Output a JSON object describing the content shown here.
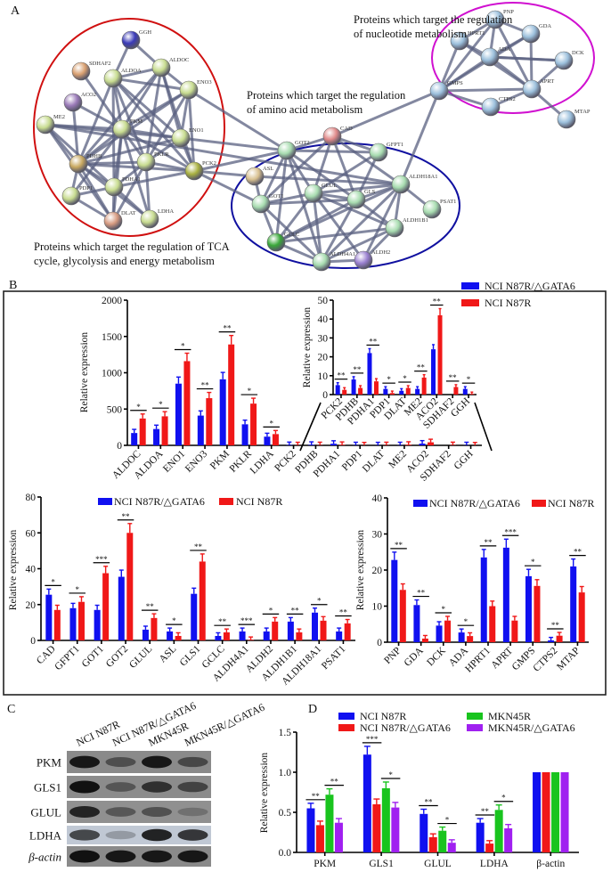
{
  "colors": {
    "blue": "#1010f0",
    "red": "#f01818",
    "green": "#19c41e",
    "purple": "#a020f0",
    "edge": "#5a6080",
    "tca_ring": "#d01010",
    "aa_ring": "#1010a0",
    "nuc_ring": "#d010d0"
  },
  "panel_a": {
    "letter": "A",
    "captions": {
      "nucleotide": [
        "Proteins which target the regulation",
        "of nucleotide metabolism"
      ],
      "amino": [
        "Proteins which target the regulation",
        "of amino acid metabolism"
      ],
      "tca": [
        "Proteins which target the regulation of TCA",
        "cycle, glycolysis and energy metabolism"
      ]
    },
    "groups": {
      "tca": [
        "GGH",
        "SDHAF2",
        "ALDOA",
        "ALDOC",
        "ENO3",
        "ACO2",
        "ME2",
        "PKM",
        "ENO1",
        "PKLR",
        "PCK2",
        "PDHB",
        "PDP1",
        "PDHA1",
        "DLAT",
        "LDHA"
      ],
      "amino": [
        "GOT2",
        "CAD",
        "GFPT1",
        "ASL",
        "ALDH18A1",
        "GLUL",
        "GLS",
        "GOT1",
        "PSAT1",
        "ALDH1B1",
        "GCLC",
        "ALDH4A1",
        "ALDH2"
      ],
      "nucleotide": [
        "PNP",
        "GDA",
        "HPRT1",
        "ADA",
        "DCK",
        "GMPS",
        "APRT",
        "CTPS2",
        "MTAP"
      ]
    },
    "edges": [
      [
        "GGH",
        "ALDOA"
      ],
      [
        "GGH",
        "ALDOC"
      ],
      [
        "SDHAF2",
        "PKM"
      ],
      [
        "ALDOA",
        "ALDOC"
      ],
      [
        "ALDOA",
        "ENO3"
      ],
      [
        "ALDOA",
        "PKM"
      ],
      [
        "ALDOA",
        "ENO1"
      ],
      [
        "ALDOA",
        "PKLR"
      ],
      [
        "ALDOA",
        "PDHB"
      ],
      [
        "ALDOA",
        "PDHA1"
      ],
      [
        "ALDOA",
        "PCK2"
      ],
      [
        "ALDOC",
        "ENO3"
      ],
      [
        "ALDOC",
        "PKM"
      ],
      [
        "ALDOC",
        "ENO1"
      ],
      [
        "ALDOC",
        "PKLR"
      ],
      [
        "ALDOC",
        "PDHB"
      ],
      [
        "ALDOC",
        "PCK2"
      ],
      [
        "ENO3",
        "PKM"
      ],
      [
        "ENO3",
        "ENO1"
      ],
      [
        "ENO3",
        "PKLR"
      ],
      [
        "ENO3",
        "PDHB"
      ],
      [
        "ENO3",
        "PCK2"
      ],
      [
        "ENO3",
        "GOT2"
      ],
      [
        "ACO2",
        "PDHB"
      ],
      [
        "ACO2",
        "PKM"
      ],
      [
        "ME2",
        "PKM"
      ],
      [
        "ME2",
        "PDHB"
      ],
      [
        "ME2",
        "ENO1"
      ],
      [
        "ME2",
        "PDHA1"
      ],
      [
        "ME2",
        "DLAT"
      ],
      [
        "PKM",
        "ENO1"
      ],
      [
        "PKM",
        "PKLR"
      ],
      [
        "PKM",
        "PCK2"
      ],
      [
        "PKM",
        "PDHB"
      ],
      [
        "PKM",
        "PDHA1"
      ],
      [
        "PKM",
        "LDHA"
      ],
      [
        "PKM",
        "DLAT"
      ],
      [
        "PKM",
        "PDP1"
      ],
      [
        "ENO1",
        "PKLR"
      ],
      [
        "ENO1",
        "PCK2"
      ],
      [
        "ENO1",
        "PDHB"
      ],
      [
        "ENO1",
        "GOT2"
      ],
      [
        "PKLR",
        "PCK2"
      ],
      [
        "PKLR",
        "PDHB"
      ],
      [
        "PKLR",
        "PDHA1"
      ],
      [
        "PKLR",
        "LDHA"
      ],
      [
        "PCK2",
        "PDHB"
      ],
      [
        "PCK2",
        "PDHA1"
      ],
      [
        "PCK2",
        "GOT2"
      ],
      [
        "PCK2",
        "GOT1"
      ],
      [
        "PCK2",
        "ASL"
      ],
      [
        "PDHB",
        "PDP1"
      ],
      [
        "PDHB",
        "PDHA1"
      ],
      [
        "PDHB",
        "DLAT"
      ],
      [
        "PDHB",
        "LDHA"
      ],
      [
        "PDP1",
        "PDHA1"
      ],
      [
        "PDP1",
        "DLAT"
      ],
      [
        "PDHA1",
        "DLAT"
      ],
      [
        "PDHA1",
        "LDHA"
      ],
      [
        "DLAT",
        "PKLR"
      ],
      [
        "ME2",
        "ALDH18A1"
      ],
      [
        "GOT2",
        "CAD"
      ],
      [
        "GOT2",
        "GFPT1"
      ],
      [
        "GOT2",
        "GLUL"
      ],
      [
        "GOT2",
        "GLS"
      ],
      [
        "GOT2",
        "GOT1"
      ],
      [
        "GOT2",
        "GCLC"
      ],
      [
        "GOT2",
        "ALDH4A1"
      ],
      [
        "CAD",
        "GFPT1"
      ],
      [
        "CAD",
        "GLUL"
      ],
      [
        "CAD",
        "GLS"
      ],
      [
        "CAD",
        "GOT1"
      ],
      [
        "CAD",
        "ALDH18A1"
      ],
      [
        "CAD",
        "GMPS"
      ],
      [
        "GFPT1",
        "GLUL"
      ],
      [
        "GFPT1",
        "GLS"
      ],
      [
        "ASL",
        "ALDH18A1"
      ],
      [
        "ASL",
        "GOT1"
      ],
      [
        "ALDH18A1",
        "GLUL"
      ],
      [
        "ALDH18A1",
        "GLS"
      ],
      [
        "ALDH18A1",
        "PSAT1"
      ],
      [
        "ALDH18A1",
        "ALDH1B1"
      ],
      [
        "ALDH18A1",
        "ALDH4A1"
      ],
      [
        "ALDH18A1",
        "ALDH2"
      ],
      [
        "ALDH18A1",
        "GCLC"
      ],
      [
        "ALDH18A1",
        "GMPS"
      ],
      [
        "GLUL",
        "GLS"
      ],
      [
        "GLUL",
        "GOT1"
      ],
      [
        "GLUL",
        "GCLC"
      ],
      [
        "GLUL",
        "ALDH4A1"
      ],
      [
        "GLUL",
        "ALDH2"
      ],
      [
        "GLUL",
        "ALDH1B1"
      ],
      [
        "GLS",
        "GOT1"
      ],
      [
        "GLS",
        "GCLC"
      ],
      [
        "GLS",
        "ALDH4A1"
      ],
      [
        "GLS",
        "ALDH1B1"
      ],
      [
        "GOT1",
        "GCLC"
      ],
      [
        "GOT1",
        "ALDH4A1"
      ],
      [
        "GCLC",
        "ALDH4A1"
      ],
      [
        "GCLC",
        "ALDH1B1"
      ],
      [
        "ALDH4A1",
        "ALDH2"
      ],
      [
        "ALDH4A1",
        "ALDH1B1"
      ],
      [
        "ALDH2",
        "ALDH1B1"
      ],
      [
        "PNP",
        "GDA"
      ],
      [
        "PNP",
        "HPRT1"
      ],
      [
        "PNP",
        "ADA"
      ],
      [
        "PNP",
        "GMPS"
      ],
      [
        "PNP",
        "APRT"
      ],
      [
        "GDA",
        "ADA"
      ],
      [
        "GDA",
        "APRT"
      ],
      [
        "GDA",
        "GMPS"
      ],
      [
        "HPRT1",
        "ADA"
      ],
      [
        "HPRT1",
        "GMPS"
      ],
      [
        "HPRT1",
        "APRT"
      ],
      [
        "ADA",
        "GMPS"
      ],
      [
        "ADA",
        "APRT"
      ],
      [
        "DCK",
        "APRT"
      ],
      [
        "DCK",
        "ADA"
      ],
      [
        "GMPS",
        "APRT"
      ],
      [
        "GMPS",
        "CTPS2"
      ],
      [
        "APRT",
        "CTPS2"
      ],
      [
        "APRT",
        "MTAP"
      ],
      [
        "ADA",
        "DCK"
      ]
    ]
  },
  "panel_b": {
    "letter": "B",
    "legend": {
      "series1": "NCI N87R/△GATA6",
      "series2": "NCI N87R"
    }
  },
  "panel_c": {
    "letter": "C",
    "lanes": [
      "NCI N87R",
      "NCI N87R/△GATA6",
      "MKN45R",
      "MKN45R/△GATA6"
    ],
    "rows": [
      "PKM",
      "GLS1",
      "GLUL",
      "LDHA",
      "β-actin"
    ]
  },
  "panel_d": {
    "letter": "D"
  },
  "chart_data": [
    {
      "id": "b-main",
      "type": "bar",
      "ylabel": "Relative expression",
      "ylim": [
        0,
        2000
      ],
      "yticks": [
        0,
        500,
        1000,
        1500,
        2000
      ],
      "categories": [
        "ALDOC",
        "ALDOA",
        "ENO1",
        "ENO3",
        "PKM",
        "PKLR",
        "LDHA",
        "PCK2",
        "PDHB",
        "PDHA1",
        "PDP1",
        "DLAT",
        "ME2",
        "ACO2",
        "SDHAF2",
        "GGH"
      ],
      "series": [
        {
          "name": "NCI N87R/△GATA6",
          "color": "#1010f0",
          "values": [
            170,
            225,
            850,
            410,
            910,
            290,
            120,
            5,
            8,
            22,
            3,
            2,
            3,
            24,
            0,
            3
          ]
        },
        {
          "name": "NCI N87R",
          "color": "#f01818",
          "values": [
            370,
            400,
            1160,
            650,
            1390,
            575,
            155,
            2.5,
            3.5,
            7,
            0.8,
            3.5,
            9,
            42,
            4,
            0.3
          ]
        }
      ],
      "significance": [
        "*",
        "*",
        "*",
        "**",
        "**",
        "*",
        "*",
        "",
        "",
        "",
        "",
        "",
        "",
        "",
        "",
        ""
      ]
    },
    {
      "id": "b-inset",
      "type": "bar",
      "ylabel": "Relative expression",
      "ylim": [
        0,
        50
      ],
      "yticks": [
        0,
        10,
        20,
        30,
        40,
        50
      ],
      "legend": "top-right",
      "categories": [
        "PCK2",
        "PDHB",
        "PDHA1",
        "PDP1",
        "DLAT",
        "ME2",
        "ACO2",
        "SDHAF2",
        "GGH"
      ],
      "series": [
        {
          "name": "NCI N87R/△GATA6",
          "color": "#1010f0",
          "values": [
            5,
            8,
            22,
            3,
            2,
            3,
            24,
            0,
            3
          ]
        },
        {
          "name": "NCI N87R",
          "color": "#f01818",
          "values": [
            2.5,
            3.5,
            7,
            0.8,
            3.5,
            9,
            42,
            4,
            0.3
          ]
        }
      ],
      "significance": [
        "**",
        "**",
        "**",
        "*",
        "*",
        "**",
        "**",
        "**",
        "*"
      ]
    },
    {
      "id": "b-amino",
      "type": "bar",
      "ylabel": "Relative expression",
      "ylim": [
        0,
        80
      ],
      "yticks": [
        0,
        20,
        40,
        60,
        80
      ],
      "legend": "top",
      "categories": [
        "CAD",
        "GFPT1",
        "GOT1",
        "GOT2",
        "GLUL",
        "ASL",
        "GLS1",
        "GCLC",
        "ALDH4A1",
        "ALDH2",
        "ALDH1B1",
        "ALDH18A1",
        "PSAT1"
      ],
      "series": [
        {
          "name": "NCI N87R/△GATA6",
          "color": "#1010f0",
          "values": [
            25.5,
            18,
            17,
            35.5,
            6,
            5,
            26,
            2.5,
            5,
            5,
            10.5,
            15.5,
            5
          ]
        },
        {
          "name": "NCI N87R",
          "color": "#f01818",
          "values": [
            17,
            21.5,
            37.5,
            60,
            12.5,
            2.5,
            44,
            4.5,
            0.3,
            10.5,
            4.5,
            11,
            9.5
          ]
        }
      ],
      "significance": [
        "*",
        "*",
        "***",
        "**",
        "**",
        "*",
        "**",
        "**",
        "***",
        "*",
        "**",
        "*",
        "**"
      ]
    },
    {
      "id": "b-nuc",
      "type": "bar",
      "ylabel": "Relative expression",
      "ylim": [
        0,
        40
      ],
      "yticks": [
        0,
        10,
        20,
        30,
        40
      ],
      "legend": "top",
      "categories": [
        "PNP",
        "GDA",
        "DCK",
        "ADA",
        "HPRT1",
        "APRT",
        "GMPS",
        "CTPS2",
        "MTAP"
      ],
      "series": [
        {
          "name": "NCI N87R/△GATA6",
          "color": "#1010f0",
          "values": [
            22.8,
            10.3,
            4.6,
            2.7,
            23.5,
            26.2,
            18.3,
            0.5,
            21
          ]
        },
        {
          "name": "NCI N87R",
          "color": "#f01818",
          "values": [
            14.5,
            1,
            6,
            1.7,
            10,
            6,
            15.6,
            1.8,
            13.8
          ]
        }
      ],
      "significance": [
        "**",
        "**",
        "*",
        "*",
        "**",
        "***",
        "*",
        "**",
        "**"
      ]
    },
    {
      "id": "d",
      "type": "bar",
      "ylabel": "Relative expression",
      "ylim": [
        0,
        1.5
      ],
      "yticks": [
        "0.0",
        "0.5",
        "1.0",
        "1.5"
      ],
      "legend": "top",
      "categories": [
        "PKM",
        "GLS1",
        "GLUL",
        "LDHA",
        "β-actin"
      ],
      "series": [
        {
          "name": "NCI N87R",
          "color": "#1010f0",
          "values": [
            0.55,
            1.22,
            0.48,
            0.37,
            1
          ]
        },
        {
          "name": "NCI N87R/△GATA6",
          "color": "#f01818",
          "values": [
            0.34,
            0.6,
            0.19,
            0.11,
            1
          ]
        },
        {
          "name": "MKN45R",
          "color": "#19c41e",
          "values": [
            0.72,
            0.8,
            0.27,
            0.53,
            1
          ]
        },
        {
          "name": "MKN45R/△GATA6",
          "color": "#a020f0",
          "values": [
            0.37,
            0.56,
            0.12,
            0.3,
            1
          ]
        }
      ],
      "significance_pairs": [
        [
          "**",
          "**"
        ],
        [
          "***",
          "*"
        ],
        [
          "**",
          "*"
        ],
        [
          "**",
          "*"
        ],
        [
          "",
          ""
        ]
      ]
    }
  ]
}
